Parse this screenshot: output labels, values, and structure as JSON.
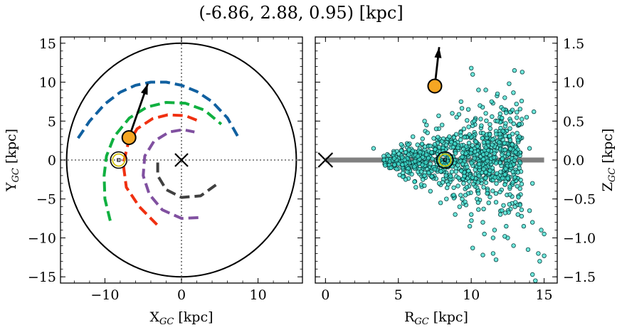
{
  "title": "(-6.86, 2.88, 0.95) [kpc]",
  "chart_data": [
    {
      "type": "scatter",
      "panel": "left",
      "xlabel": "X",
      "xlabel_sub": "GC",
      "xlabel_unit": " [kpc]",
      "ylabel": "Y",
      "ylabel_sub": "GC",
      "ylabel_unit": " [kpc]",
      "xlim": [
        -15.8,
        15.8
      ],
      "ylim": [
        -15.8,
        15.8
      ],
      "xticks": [
        -10,
        0,
        10
      ],
      "xtick_labels": [
        "−10",
        "0",
        "10"
      ],
      "yticks": [
        -15,
        -10,
        -5,
        0,
        5,
        10,
        15
      ],
      "ytick_labels": [
        "−15",
        "−10",
        "−5",
        "0",
        "5",
        "10",
        "15"
      ],
      "boundary_circle_radius": 15,
      "galactic_center": [
        0,
        0
      ],
      "sun": [
        -8.2,
        0
      ],
      "object": [
        -6.86,
        2.88
      ],
      "velocity_arrow_tip": [
        -4.4,
        9.8
      ],
      "spiral_arms": [
        {
          "color": "#1060a0",
          "points": [
            [
              -13.5,
              2.8
            ],
            [
              -12,
              5
            ],
            [
              -10,
              7.2
            ],
            [
              -8,
              8.7
            ],
            [
              -6,
              9.6
            ],
            [
              -4,
              10
            ],
            [
              -2,
              10
            ],
            [
              0,
              9.6
            ],
            [
              2,
              8.8
            ],
            [
              4,
              7.5
            ],
            [
              6,
              5.4
            ],
            [
              7.6,
              2.6
            ]
          ]
        },
        {
          "color": "#10b040",
          "points": [
            [
              -9.3,
              -7.8
            ],
            [
              -10,
              -5
            ],
            [
              -10.1,
              -2
            ],
            [
              -9.8,
              0.5
            ],
            [
              -8.8,
              3
            ],
            [
              -6.8,
              5.4
            ],
            [
              -4.5,
              6.8
            ],
            [
              -2,
              7.4
            ],
            [
              0.5,
              7.3
            ],
            [
              3,
              6.4
            ],
            [
              5.2,
              4.6
            ]
          ]
        },
        {
          "color": "#f03010",
          "points": [
            [
              -3.2,
              -8.3
            ],
            [
              -5.5,
              -6
            ],
            [
              -7.2,
              -3.5
            ],
            [
              -7.6,
              -0.5
            ],
            [
              -7,
              2
            ],
            [
              -5.8,
              4
            ],
            [
              -3.8,
              5.3
            ],
            [
              -1.8,
              5.8
            ],
            [
              0.5,
              5.7
            ],
            [
              2.3,
              5
            ]
          ]
        },
        {
          "color": "#8050a0",
          "points": [
            [
              2.2,
              -7.4
            ],
            [
              0,
              -7.5
            ],
            [
              -2.5,
              -6.4
            ],
            [
              -4.2,
              -4.4
            ],
            [
              -5,
              -2
            ],
            [
              -4.8,
              0.5
            ],
            [
              -3.6,
              2.4
            ],
            [
              -1.6,
              3.6
            ],
            [
              0.2,
              3.9
            ],
            [
              1.7,
              3.6
            ]
          ]
        },
        {
          "color": "#404040",
          "points": [
            [
              4.5,
              -3.2
            ],
            [
              2.5,
              -4.6
            ],
            [
              0,
              -4.8
            ],
            [
              -2,
              -3.8
            ],
            [
              -3.1,
              -2
            ],
            [
              -3.1,
              0
            ]
          ]
        }
      ]
    },
    {
      "type": "scatter",
      "panel": "right",
      "xlabel": "R",
      "xlabel_sub": "GC",
      "xlabel_unit": " [kpc]",
      "ylabel": "Z",
      "ylabel_sub": "GC",
      "ylabel_unit": " [kpc]",
      "xlim": [
        -0.7,
        15.9
      ],
      "ylim": [
        -1.58,
        1.58
      ],
      "xticks": [
        0,
        5,
        10,
        15
      ],
      "xtick_labels": [
        "0",
        "5",
        "10",
        "15"
      ],
      "yticks": [
        -1.5,
        -1.0,
        -0.5,
        0.0,
        0.5,
        1.0,
        1.5
      ],
      "ytick_labels": [
        "−1.5",
        "−1.0",
        "−0.5",
        "0.0",
        "0.5",
        "1.0",
        "1.5"
      ],
      "disk_line": {
        "x": [
          0,
          15
        ],
        "y": 0,
        "color": "#808080"
      },
      "galactic_center": [
        0,
        0
      ],
      "sun": [
        8.2,
        0
      ],
      "object": [
        7.5,
        0.95
      ],
      "velocity_arrow_tip": [
        7.8,
        1.45
      ],
      "stars_color": "#40e0d0",
      "stars": [
        [
          3.3,
          0.15
        ],
        [
          4.0,
          0.05
        ],
        [
          4.5,
          -0.1
        ],
        [
          5.2,
          0.2
        ],
        [
          5.5,
          -0.25
        ],
        [
          6.0,
          0.3
        ],
        [
          6.2,
          -0.35
        ],
        [
          6.5,
          0.1
        ],
        [
          6.8,
          -0.2
        ],
        [
          7.0,
          0.35
        ],
        [
          7.2,
          -0.4
        ],
        [
          7.5,
          0.2
        ],
        [
          7.8,
          -0.3
        ],
        [
          8.0,
          0.45
        ],
        [
          8.3,
          -0.5
        ],
        [
          8.5,
          0.3
        ],
        [
          8.8,
          -0.45
        ],
        [
          9.0,
          0.55
        ],
        [
          9.2,
          -0.6
        ],
        [
          9.5,
          0.4
        ],
        [
          9.7,
          -0.35
        ],
        [
          9.8,
          0.65
        ],
        [
          10.0,
          -0.7
        ],
        [
          10.2,
          0.5
        ],
        [
          10.4,
          -0.5
        ],
        [
          10.6,
          0.7
        ],
        [
          10.8,
          -0.8
        ],
        [
          11.0,
          0.6
        ],
        [
          11.2,
          -0.55
        ],
        [
          11.4,
          0.75
        ],
        [
          11.6,
          -0.9
        ],
        [
          11.8,
          0.5
        ],
        [
          12.0,
          -0.7
        ],
        [
          12.2,
          0.65
        ],
        [
          12.5,
          -1.0
        ],
        [
          12.7,
          0.5
        ],
        [
          13.0,
          -0.6
        ],
        [
          13.3,
          0.3
        ],
        [
          13.6,
          -0.85
        ],
        [
          14.0,
          0.15
        ],
        [
          14.2,
          -0.3
        ],
        [
          10.0,
          1.18
        ],
        [
          10.1,
          1.1
        ],
        [
          13.5,
          1.13
        ],
        [
          11.0,
          0.9
        ],
        [
          12.3,
          0.8
        ],
        [
          14.3,
          0.62
        ],
        [
          14.0,
          -0.65
        ],
        [
          14.2,
          -0.8
        ],
        [
          14.8,
          -0.9
        ],
        [
          15.0,
          -0.95
        ],
        [
          14.6,
          -1.2
        ],
        [
          14.7,
          -1.3
        ],
        [
          14.4,
          -1.55
        ],
        [
          15.0,
          -1.23
        ],
        [
          14.2,
          -1.47
        ],
        [
          10.1,
          -1.13
        ],
        [
          10.8,
          -1.22
        ],
        [
          11.5,
          -1.2
        ],
        [
          11.7,
          -1.28
        ],
        [
          12.3,
          -0.98
        ],
        [
          11.5,
          -1.0
        ],
        [
          9.6,
          -0.45
        ],
        [
          8.7,
          0.6
        ],
        [
          7.6,
          0.4
        ],
        [
          6.8,
          0.5
        ],
        [
          9.3,
          0.75
        ],
        [
          10.5,
          0.9
        ],
        [
          11.8,
          0.85
        ],
        [
          12.6,
          0.98
        ],
        [
          13.1,
          0.72
        ],
        [
          13.8,
          0.55
        ],
        [
          12.4,
          -0.85
        ],
        [
          13.2,
          -0.7
        ],
        [
          10.9,
          -0.95
        ],
        [
          9.9,
          -0.85
        ],
        [
          8.9,
          -0.7
        ],
        [
          7.9,
          -0.55
        ],
        [
          12.9,
          -1.1
        ],
        [
          13.9,
          -1.15
        ]
      ]
    }
  ]
}
